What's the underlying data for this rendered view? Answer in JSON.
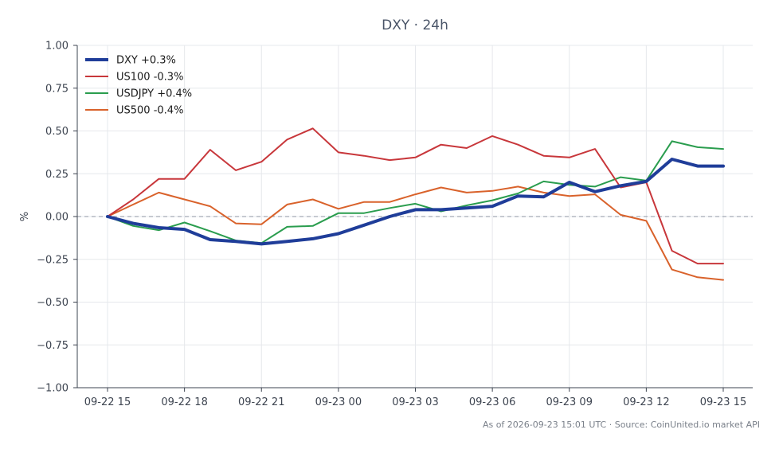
{
  "chart_data": {
    "type": "line",
    "title": "DXY · 24h",
    "ylabel": "%",
    "xlabel": "",
    "ylim": [
      -1.0,
      1.0
    ],
    "yticks": [
      -1.0,
      -0.75,
      -0.5,
      -0.25,
      0.0,
      0.25,
      0.5,
      0.75,
      1.0
    ],
    "ytick_labels": [
      "−1.00",
      "−0.75",
      "−0.50",
      "−0.25",
      "0.00",
      "0.25",
      "0.50",
      "0.75",
      "1.00"
    ],
    "xlim": [
      0,
      24
    ],
    "xticks": [
      0,
      3,
      6,
      9,
      12,
      15,
      18,
      21,
      24
    ],
    "xtick_labels": [
      "09-22 15",
      "09-22 18",
      "09-22 21",
      "09-23 00",
      "09-23 03",
      "09-23 06",
      "09-23 09",
      "09-23 12",
      "09-23 15"
    ],
    "x": [
      0,
      1,
      2,
      3,
      4,
      5,
      6,
      7,
      8,
      9,
      10,
      11,
      12,
      13,
      14,
      15,
      16,
      17,
      18,
      19,
      20,
      21,
      22,
      23,
      24
    ],
    "grid": true,
    "zero_line": true,
    "legend_position": "top-left",
    "series": [
      {
        "name": "DXY +0.3%",
        "color": "#1f3d99",
        "width": 4,
        "values": [
          0.0,
          -0.04,
          -0.065,
          -0.075,
          -0.135,
          -0.145,
          -0.16,
          -0.145,
          -0.13,
          -0.1,
          -0.05,
          0.0,
          0.04,
          0.04,
          0.05,
          0.06,
          0.12,
          0.115,
          0.2,
          0.145,
          0.18,
          0.205,
          0.335,
          0.295,
          0.295
        ]
      },
      {
        "name": "US100 -0.3%",
        "color": "#c8373b",
        "width": 2,
        "values": [
          0.0,
          0.1,
          0.22,
          0.22,
          0.39,
          0.27,
          0.32,
          0.45,
          0.515,
          0.375,
          0.355,
          0.33,
          0.345,
          0.42,
          0.4,
          0.47,
          0.42,
          0.355,
          0.345,
          0.395,
          0.17,
          0.2,
          -0.2,
          -0.275,
          -0.275
        ]
      },
      {
        "name": "USDJPY +0.4%",
        "color": "#2a9d4e",
        "width": 2,
        "values": [
          0.0,
          -0.055,
          -0.08,
          -0.035,
          -0.085,
          -0.14,
          -0.155,
          -0.06,
          -0.055,
          0.02,
          0.02,
          0.05,
          0.075,
          0.03,
          0.065,
          0.095,
          0.135,
          0.205,
          0.185,
          0.175,
          0.23,
          0.21,
          0.44,
          0.405,
          0.395
        ]
      },
      {
        "name": "US500 -0.4%",
        "color": "#d9622b",
        "width": 2,
        "values": [
          0.0,
          0.07,
          0.14,
          0.1,
          0.06,
          -0.04,
          -0.045,
          0.07,
          0.1,
          0.045,
          0.085,
          0.085,
          0.13,
          0.17,
          0.14,
          0.15,
          0.175,
          0.14,
          0.12,
          0.13,
          0.01,
          -0.025,
          -0.31,
          -0.355,
          -0.37
        ]
      }
    ],
    "footer": "As of 2026-09-23 15:01 UTC · Source: CoinUnited.io market API"
  }
}
